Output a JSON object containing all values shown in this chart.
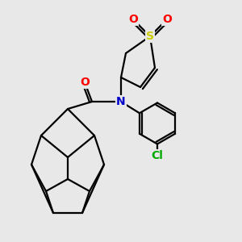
{
  "background_color": "#e8e8e8",
  "bond_color": "#000000",
  "atom_colors": {
    "O": "#ff0000",
    "N": "#0000cc",
    "S": "#cccc00",
    "Cl": "#00aa00",
    "C": "#000000"
  },
  "line_width": 1.6,
  "font_size": 10,
  "figsize": [
    3.0,
    3.0
  ],
  "dpi": 100
}
